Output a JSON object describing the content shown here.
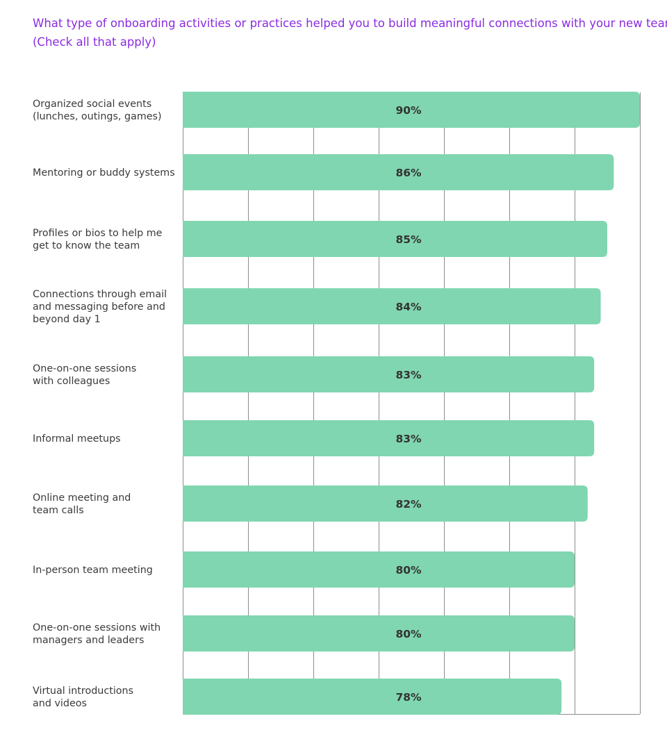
{
  "question": {
    "line1": "What type of onboarding activities or practices helped you to build meaningful connections with your new team?",
    "line2": "(Check all that apply)"
  },
  "chart_data": {
    "type": "bar",
    "orientation": "horizontal",
    "categories": [
      [
        "Organized social events",
        "(lunches, outings, games)"
      ],
      [
        "Mentoring or buddy systems"
      ],
      [
        "Profiles or bios to help me",
        "get to know the team"
      ],
      [
        "Connections through email",
        "and messaging before and",
        "beyond day 1"
      ],
      [
        "One-on-one sessions",
        "with colleagues"
      ],
      [
        "Informal meetups"
      ],
      [
        "Online meeting and",
        "team calls"
      ],
      [
        "In-person team meeting"
      ],
      [
        "One-on-one sessions with",
        "managers and leaders"
      ],
      [
        "Virtual introductions",
        "and videos"
      ]
    ],
    "values": [
      90,
      86,
      85,
      84,
      83,
      83,
      82,
      80,
      80,
      78
    ],
    "value_labels": [
      "90%",
      "86%",
      "85%",
      "84%",
      "83%",
      "83%",
      "82%",
      "80%",
      "80%",
      "78%"
    ],
    "xlim": [
      20,
      90
    ],
    "grid": true,
    "colors": {
      "bar": "#80d6b0",
      "grid": "#8c8c8c",
      "title": "#8a2be2"
    }
  }
}
